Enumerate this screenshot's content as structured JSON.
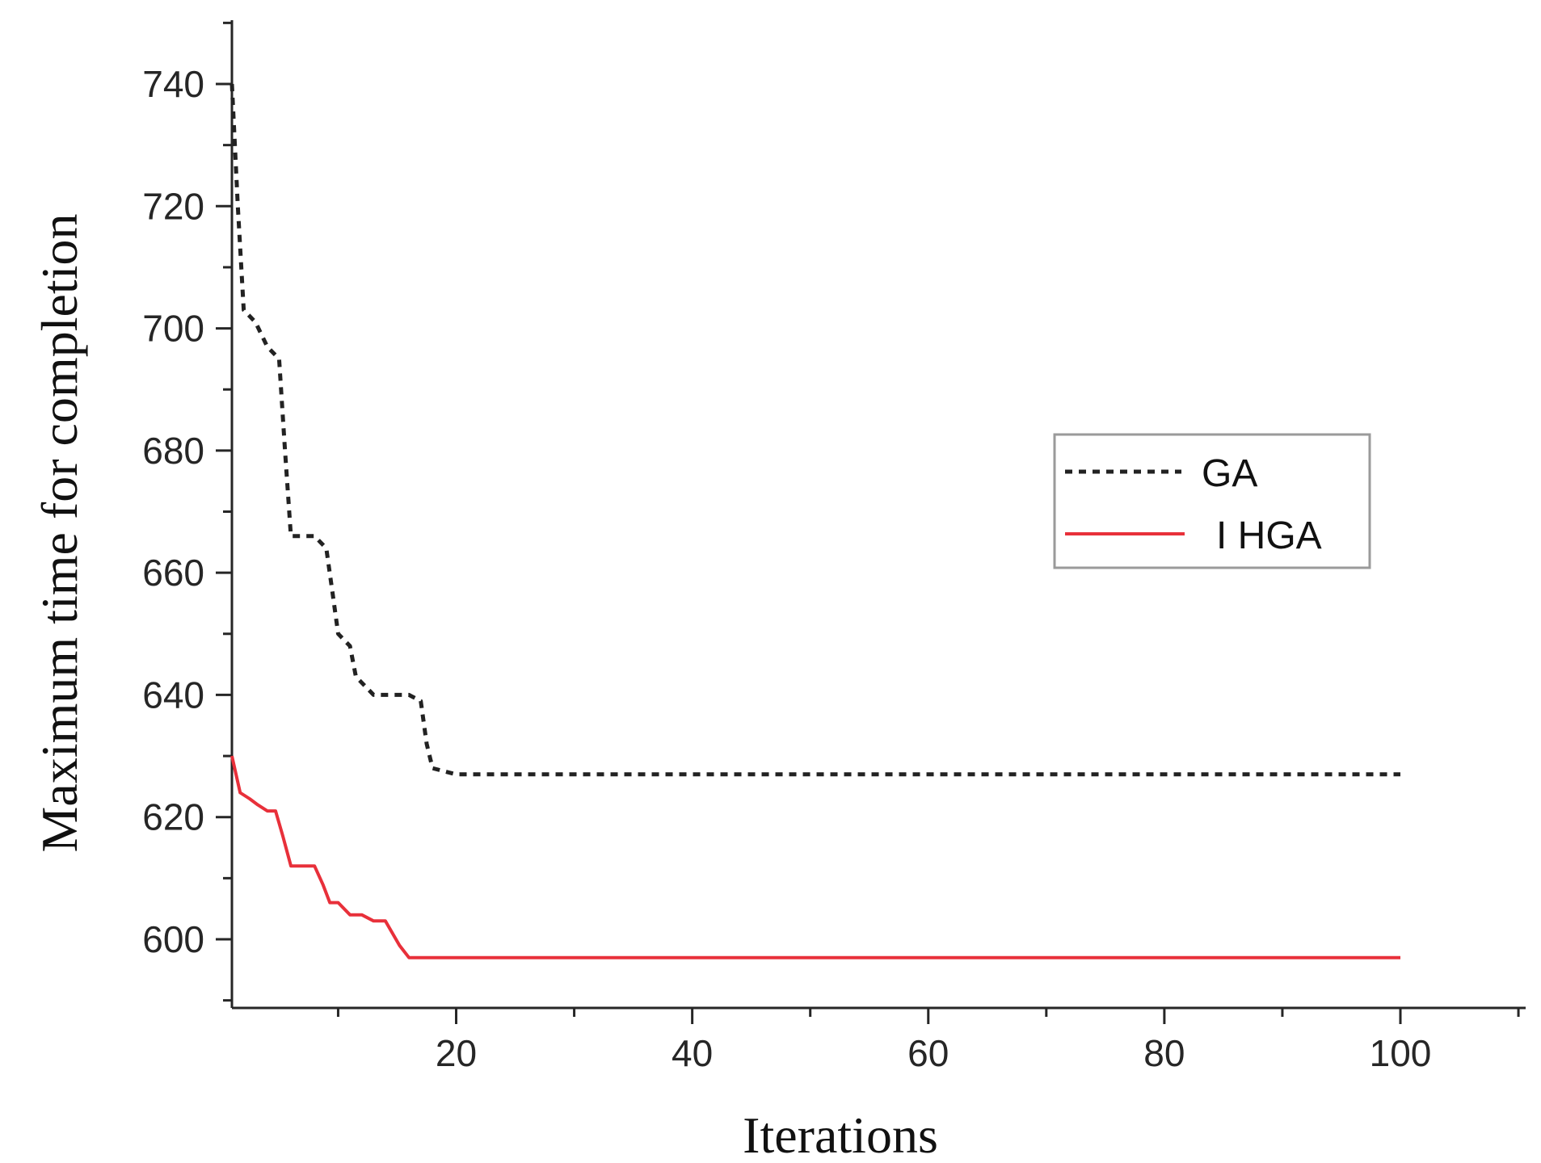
{
  "chart_data": {
    "type": "line",
    "title": "",
    "xlabel": "Iterations",
    "ylabel": "Maximum time for completion",
    "xlim": [
      1,
      111
    ],
    "ylim": [
      590,
      750
    ],
    "x_ticks": [
      20,
      40,
      60,
      80,
      100
    ],
    "y_ticks": [
      600,
      620,
      640,
      660,
      680,
      700,
      720,
      740
    ],
    "grid": false,
    "legend_position": "right",
    "series": [
      {
        "name": "GA",
        "color": "#222222",
        "style": "dotted",
        "x": [
          1,
          1.5,
          2,
          3,
          4,
          5,
          5.5,
          6,
          6.3,
          7,
          8,
          9,
          9.5,
          10,
          10.5,
          11,
          11.5,
          12,
          13,
          14,
          15,
          16,
          17,
          17.5,
          18,
          20,
          22,
          100
        ],
        "y": [
          740,
          720,
          703,
          701,
          697,
          695,
          680,
          666,
          666,
          666,
          666,
          664,
          657,
          650,
          649,
          648,
          643,
          642,
          640,
          640,
          640,
          640,
          639,
          632,
          628,
          627,
          627,
          627
        ]
      },
      {
        "name": "I HGA",
        "color": "#e8303a",
        "style": "solid",
        "x": [
          1,
          1.7,
          2.5,
          3.2,
          4,
          4.7,
          5.3,
          6,
          7,
          8,
          8.7,
          9.3,
          10,
          11,
          12,
          13,
          14,
          14.6,
          15.2,
          16,
          17,
          100
        ],
        "y": [
          630,
          624,
          623,
          622,
          621,
          621,
          617,
          612,
          612,
          612,
          609,
          606,
          606,
          604,
          604,
          603,
          603,
          601,
          599,
          597,
          597,
          597
        ]
      }
    ]
  }
}
